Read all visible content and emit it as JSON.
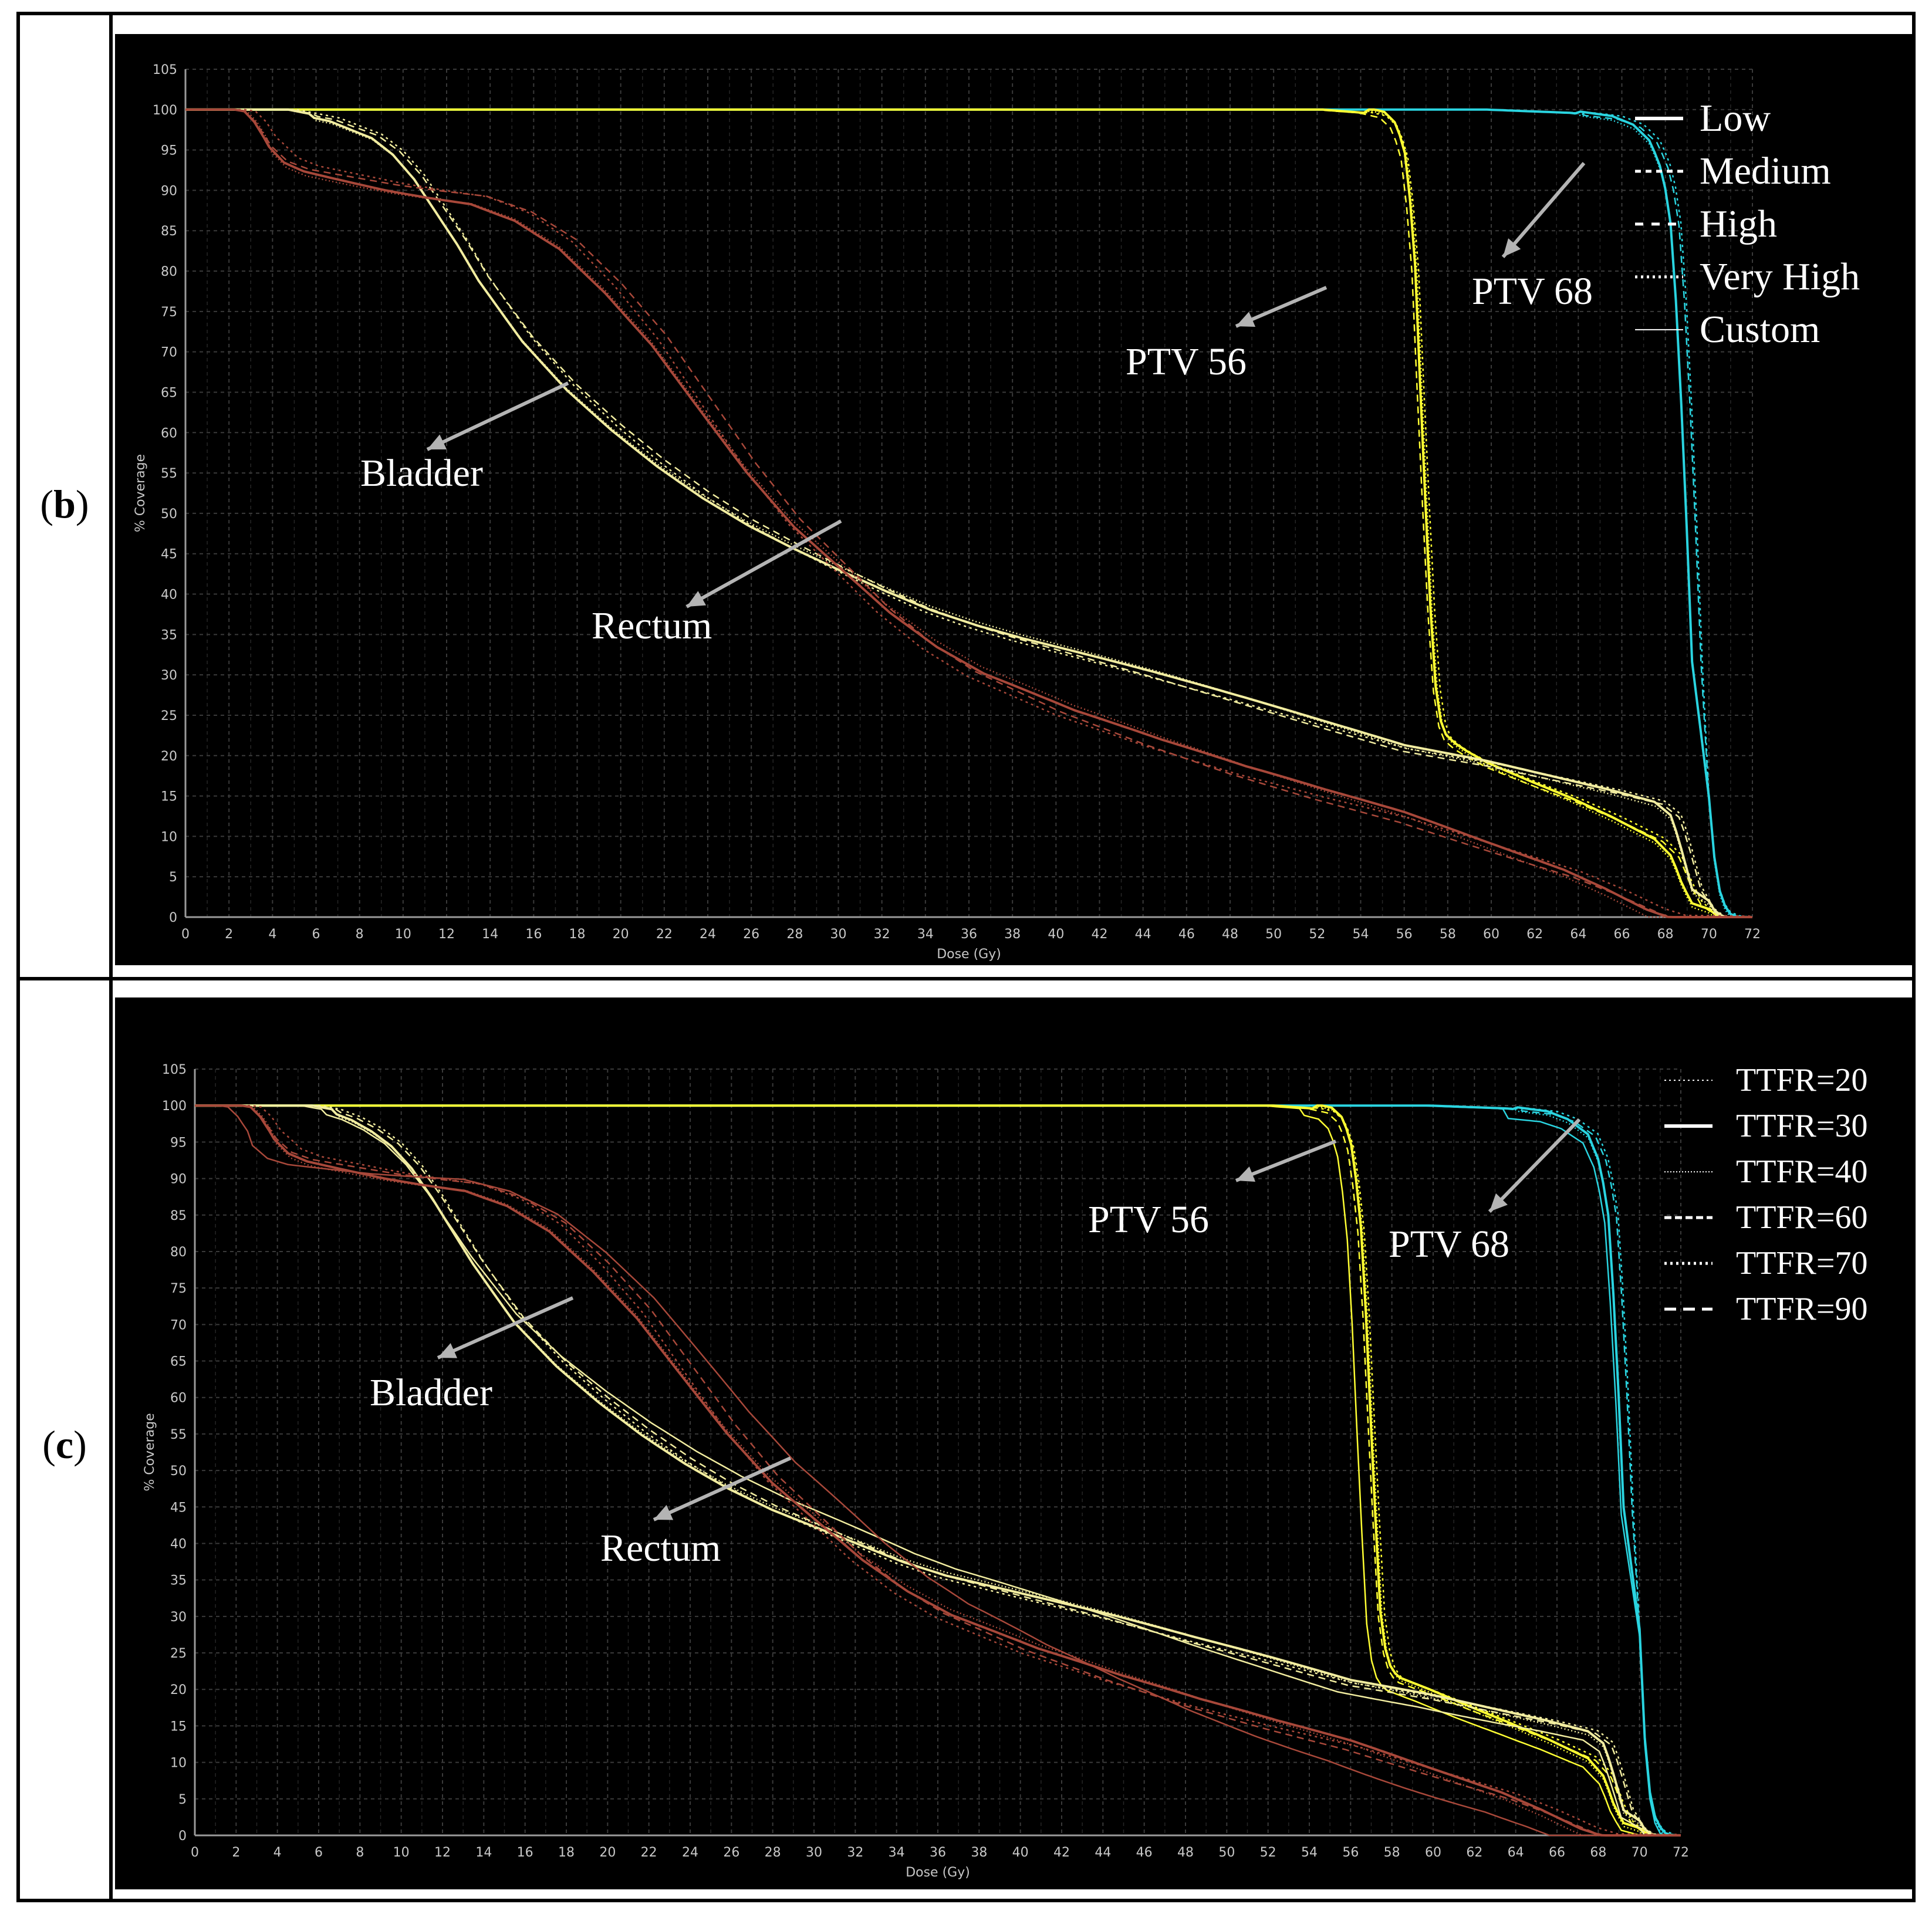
{
  "figure": {
    "panels": [
      {
        "label_open": "(",
        "label_letter": "b",
        "label_close": ")",
        "legend": [
          "Low",
          "Medium",
          "High",
          "Very High",
          "Custom"
        ],
        "annotations": [
          "PTV 68",
          "PTV 56",
          "Bladder",
          "Rectum"
        ]
      },
      {
        "label_open": "(",
        "label_letter": "c",
        "label_close": ")",
        "legend": [
          "TTFR=20",
          "TTFR=30",
          "TTFR=40",
          "TTFR=60",
          "TTFR=70",
          "TTFR=90"
        ],
        "annotations": [
          "PTV 56",
          "PTV 68",
          "Bladder",
          "Rectum"
        ]
      }
    ]
  },
  "colors": {
    "background": "#000000",
    "grid": "#3a3a3a",
    "axis_text": "#c8c8c8",
    "ptv68": "#2ad4e0",
    "ptv56": "#ffff33",
    "bladder": "#f2eda0",
    "rectum": "#a8483a",
    "arrow": "#b4b4b4",
    "label": "#ffffff"
  },
  "chart_data": [
    {
      "type": "line",
      "title": "",
      "xlabel": "Dose (Gy)",
      "ylabel": "% Coverage",
      "xlim": [
        0,
        72
      ],
      "ylim": [
        0,
        105
      ],
      "xticks": [
        0,
        2,
        4,
        6,
        8,
        10,
        12,
        14,
        16,
        18,
        20,
        22,
        24,
        26,
        28,
        30,
        32,
        34,
        36,
        38,
        40,
        42,
        44,
        46,
        48,
        50,
        52,
        54,
        56,
        58,
        60,
        62,
        64,
        66,
        68,
        70,
        72
      ],
      "yticks": [
        0,
        5,
        10,
        15,
        20,
        25,
        30,
        35,
        40,
        45,
        50,
        55,
        60,
        65,
        70,
        75,
        80,
        85,
        90,
        95,
        100,
        105
      ],
      "grid": true,
      "legend_position": "top-right",
      "series": [
        {
          "name": "PTV 68",
          "style": "solid",
          "x": [
            0,
            55,
            60,
            64,
            66,
            67,
            67.8,
            68.4,
            68.8,
            69.1,
            69.4,
            69.7,
            70,
            70.3,
            70.6,
            71,
            71.5
          ],
          "y": [
            100,
            100,
            100,
            99.6,
            99,
            98,
            96,
            92,
            85,
            72,
            55,
            35,
            15,
            6,
            2,
            0.5,
            0
          ]
        },
        {
          "name": "PTV 56",
          "style": "solid",
          "x": [
            0,
            52,
            54,
            55,
            55.6,
            56.1,
            56.5,
            56.8,
            57.1,
            57.4,
            57.7,
            58,
            58.4,
            59,
            60,
            62,
            64,
            66,
            68,
            68.8,
            69.3,
            69.8,
            70.3,
            70.8
          ],
          "y": [
            100,
            100,
            99.6,
            99,
            97.5,
            93,
            80,
            62,
            45,
            30,
            24,
            22,
            21,
            20,
            18.6,
            16.5,
            14.5,
            12.2,
            9.6,
            7.5,
            4,
            1.5,
            0.4,
            0
          ]
        },
        {
          "name": "Bladder",
          "style": "solid",
          "x": [
            0,
            3,
            5,
            6,
            7,
            8,
            9,
            10,
            11,
            12,
            13,
            14,
            16,
            18,
            20,
            22,
            24,
            26,
            28,
            30,
            32,
            34,
            36,
            38,
            40,
            44,
            48,
            52,
            56,
            60,
            64,
            66,
            68,
            68.8,
            69.3,
            69.8,
            70.3,
            70.8
          ],
          "y": [
            100,
            100,
            100,
            99.5,
            99,
            98,
            97,
            95,
            92,
            88,
            84,
            79.5,
            72,
            66,
            61,
            56.5,
            52.5,
            49,
            46,
            43.2,
            40.5,
            38,
            36,
            34.3,
            32.8,
            29.8,
            26.7,
            23.6,
            20.6,
            18.8,
            16.6,
            15.5,
            14.2,
            12.5,
            8,
            3,
            0.7,
            0
          ]
        },
        {
          "name": "Rectum",
          "style": "solid",
          "x": [
            0,
            2.5,
            3,
            3.5,
            4,
            5,
            6,
            8,
            10,
            12,
            14,
            16,
            18,
            20,
            22,
            24,
            26,
            28,
            30,
            32,
            34,
            36,
            38,
            40,
            44,
            48,
            52,
            56,
            60,
            64,
            66,
            68,
            69
          ],
          "y": [
            100,
            100,
            99.8,
            98.5,
            96.5,
            94,
            93,
            92,
            91,
            90.2,
            89.5,
            87.5,
            84,
            78.5,
            72,
            64,
            56,
            49,
            43.5,
            38,
            33.5,
            30,
            27.5,
            25,
            21,
            17.5,
            14.5,
            11.8,
            8.5,
            5.3,
            3.2,
            0.8,
            0
          ]
        }
      ]
    },
    {
      "type": "line",
      "title": "",
      "xlabel": "Dose (Gy)",
      "ylabel": "% Coverage",
      "xlim": [
        0,
        72
      ],
      "ylim": [
        0,
        105
      ],
      "xticks": [
        0,
        2,
        4,
        6,
        8,
        10,
        12,
        14,
        16,
        18,
        20,
        22,
        24,
        26,
        28,
        30,
        32,
        34,
        36,
        38,
        40,
        42,
        44,
        46,
        48,
        50,
        52,
        54,
        56,
        58,
        60,
        62,
        64,
        66,
        68,
        70,
        72
      ],
      "yticks": [
        0,
        5,
        10,
        15,
        20,
        25,
        30,
        35,
        40,
        45,
        50,
        55,
        60,
        65,
        70,
        75,
        80,
        85,
        90,
        95,
        100,
        105
      ],
      "grid": true,
      "legend_position": "top-right",
      "series": [
        {
          "name": "PTV 68",
          "style": "solid",
          "x": [
            0,
            55,
            60,
            64,
            66,
            67,
            68,
            68.6,
            69,
            69.3,
            69.6,
            69.9,
            70.2,
            70.5,
            70.8,
            71.2,
            71.8
          ],
          "y": [
            100,
            100,
            100,
            99.6,
            99,
            98,
            96,
            92,
            85,
            72,
            55,
            35,
            15,
            6,
            2,
            0.5,
            0
          ]
        },
        {
          "name": "PTV 56",
          "style": "solid",
          "x": [
            0,
            52,
            54,
            55,
            55.6,
            56.1,
            56.6,
            56.9,
            57.2,
            57.5,
            57.8,
            58.1,
            58.5,
            59,
            60,
            62,
            64,
            66,
            68,
            68.8,
            69.3,
            69.8,
            70.3,
            70.8
          ],
          "y": [
            100,
            100,
            99.6,
            99,
            97.5,
            93,
            80,
            62,
            45,
            30,
            24,
            22,
            21,
            20.5,
            19.5,
            17.3,
            15.2,
            13,
            10.5,
            8,
            4,
            1.5,
            0.4,
            0
          ]
        },
        {
          "name": "Bladder",
          "style": "solid",
          "x": [
            0,
            4,
            6,
            7,
            8,
            9,
            10,
            11,
            12,
            13,
            14,
            16,
            18,
            20,
            22,
            24,
            26,
            28,
            30,
            32,
            34,
            36,
            38,
            40,
            44,
            48,
            52,
            56,
            60,
            64,
            66,
            68,
            68.8,
            69.3,
            69.8,
            70.3,
            70.8
          ],
          "y": [
            100,
            100,
            100,
            99.5,
            98.5,
            97,
            95,
            92,
            88,
            83.5,
            79,
            71,
            65,
            60,
            55.5,
            51.5,
            48,
            45,
            42.5,
            40,
            37.5,
            35.5,
            34,
            32.5,
            29.6,
            26.5,
            23.6,
            20.6,
            18.8,
            16.6,
            15.5,
            14.2,
            12.5,
            8,
            3,
            0.7,
            0
          ]
        },
        {
          "name": "Rectum",
          "style": "solid",
          "x": [
            0,
            2.5,
            3,
            3.5,
            4,
            5,
            6,
            8,
            10,
            12,
            14,
            16,
            18,
            20,
            22,
            24,
            26,
            28,
            30,
            32,
            34,
            36,
            38,
            40,
            44,
            48,
            52,
            56,
            60,
            64,
            66,
            68,
            69
          ],
          "y": [
            100,
            100,
            99.8,
            98.5,
            96.5,
            94,
            93,
            92,
            91,
            90.2,
            89.5,
            87.5,
            84,
            78.5,
            72,
            64,
            56,
            49,
            43.5,
            38,
            33.5,
            30,
            27.5,
            25,
            21,
            17.5,
            14.5,
            11.8,
            8.5,
            5.3,
            3.2,
            0.8,
            0
          ]
        }
      ]
    }
  ]
}
